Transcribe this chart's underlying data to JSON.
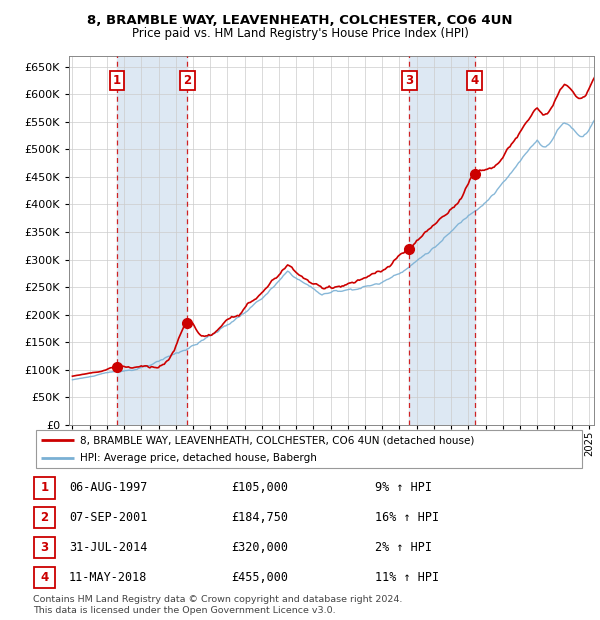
{
  "title1": "8, BRAMBLE WAY, LEAVENHEATH, COLCHESTER, CO6 4UN",
  "title2": "Price paid vs. HM Land Registry's House Price Index (HPI)",
  "ylim": [
    0,
    670000
  ],
  "yticks": [
    0,
    50000,
    100000,
    150000,
    200000,
    250000,
    300000,
    350000,
    400000,
    450000,
    500000,
    550000,
    600000,
    650000
  ],
  "xlim_start": 1994.8,
  "xlim_end": 2025.3,
  "sale_dates": [
    1997.59,
    2001.68,
    2014.57,
    2018.36
  ],
  "sale_prices": [
    105000,
    184750,
    320000,
    455000
  ],
  "sale_labels": [
    "1",
    "2",
    "3",
    "4"
  ],
  "sale_label_dates": [
    "06-AUG-1997",
    "07-SEP-2001",
    "31-JUL-2014",
    "11-MAY-2018"
  ],
  "sale_label_prices": [
    "£105,000",
    "£184,750",
    "£320,000",
    "£455,000"
  ],
  "sale_label_hpi": [
    "9% ↑ HPI",
    "16% ↑ HPI",
    "2% ↑ HPI",
    "11% ↑ HPI"
  ],
  "red_color": "#cc0000",
  "blue_color": "#7ab0d4",
  "shading_color": "#dde8f3",
  "grid_color": "#cccccc",
  "footnote1": "Contains HM Land Registry data © Crown copyright and database right 2024.",
  "footnote2": "This data is licensed under the Open Government Licence v3.0.",
  "legend_line1": "8, BRAMBLE WAY, LEAVENHEATH, COLCHESTER, CO6 4UN (detached house)",
  "legend_line2": "HPI: Average price, detached house, Babergh"
}
